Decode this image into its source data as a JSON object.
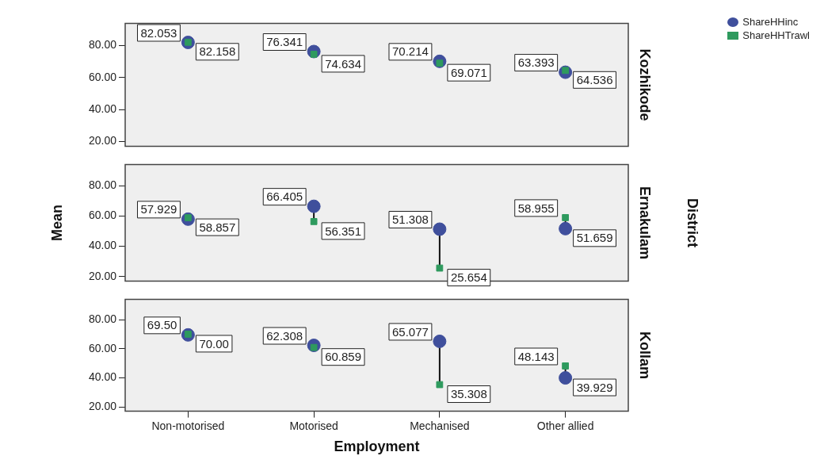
{
  "chart_data": [
    {
      "type": "scatter",
      "annotations": [
        "Kozhikode"
      ],
      "categories": [
        "Non-motorised",
        "Motorised",
        "Mechanised",
        "Other allied"
      ],
      "ylim": [
        17,
        94
      ],
      "yticks": [
        {
          "value": 20,
          "label": "20.00"
        },
        {
          "value": 40,
          "label": "40.00"
        },
        {
          "value": 60,
          "label": "60.00"
        },
        {
          "value": 80,
          "label": "80.00"
        }
      ],
      "tick_labels": "y",
      "legend": "top right",
      "series": [
        {
          "name": "ShareHHinc",
          "color": "#3f4f9c",
          "marker": "circle",
          "values": [
            82.053,
            76.341,
            70.214,
            63.393
          ],
          "value_labels": [
            "82.053",
            "76.341",
            "70.214",
            "63.393"
          ]
        },
        {
          "name": "ShareHHTrawl",
          "color": "#2e9a5e",
          "marker": "square",
          "values": [
            82.158,
            74.634,
            69.071,
            64.536
          ],
          "value_labels": [
            "82.158",
            "74.634",
            "69.071",
            "64.536"
          ]
        }
      ]
    },
    {
      "type": "scatter",
      "ylabel": "Mean",
      "annotations": [
        "Ernakulam",
        "District"
      ],
      "categories": [
        "Non-motorised",
        "Motorised",
        "Mechanised",
        "Other allied"
      ],
      "ylim": [
        17,
        94
      ],
      "yticks": [
        {
          "value": 20,
          "label": "20.00"
        },
        {
          "value": 40,
          "label": "40.00"
        },
        {
          "value": 60,
          "label": "60.00"
        },
        {
          "value": 80,
          "label": "80.00"
        }
      ],
      "tick_labels": "y",
      "series": [
        {
          "name": "ShareHHinc",
          "color": "#3f4f9c",
          "marker": "circle",
          "values": [
            57.929,
            66.405,
            51.308,
            51.659
          ],
          "value_labels": [
            "57.929",
            "66.405",
            "51.308",
            "51.659"
          ]
        },
        {
          "name": "ShareHHTrawl",
          "color": "#2e9a5e",
          "marker": "square",
          "values": [
            58.857,
            56.351,
            25.654,
            58.955
          ],
          "value_labels": [
            "58.857",
            "56.351",
            "25.654",
            "58.955"
          ]
        }
      ]
    },
    {
      "type": "scatter",
      "annotations": [
        "Kollam"
      ],
      "xlabel": "Employment",
      "categories": [
        "Non-motorised",
        "Motorised",
        "Mechanised",
        "Other allied"
      ],
      "ylim": [
        17,
        94
      ],
      "yticks": [
        {
          "value": 20,
          "label": "20.00"
        },
        {
          "value": 40,
          "label": "40.00"
        },
        {
          "value": 60,
          "label": "60.00"
        },
        {
          "value": 80,
          "label": "80.00"
        }
      ],
      "series": [
        {
          "name": "ShareHHinc",
          "color": "#3f4f9c",
          "marker": "circle",
          "values": [
            69.5,
            62.308,
            65.077,
            39.929
          ],
          "value_labels": [
            "69.50",
            "62.308",
            "65.077",
            "39.929"
          ]
        },
        {
          "name": "ShareHHTrawl",
          "color": "#2e9a5e",
          "marker": "square",
          "values": [
            70.0,
            60.859,
            35.308,
            48.143
          ],
          "value_labels": [
            "70.00",
            "60.859",
            "35.308",
            "48.143"
          ]
        }
      ]
    }
  ]
}
